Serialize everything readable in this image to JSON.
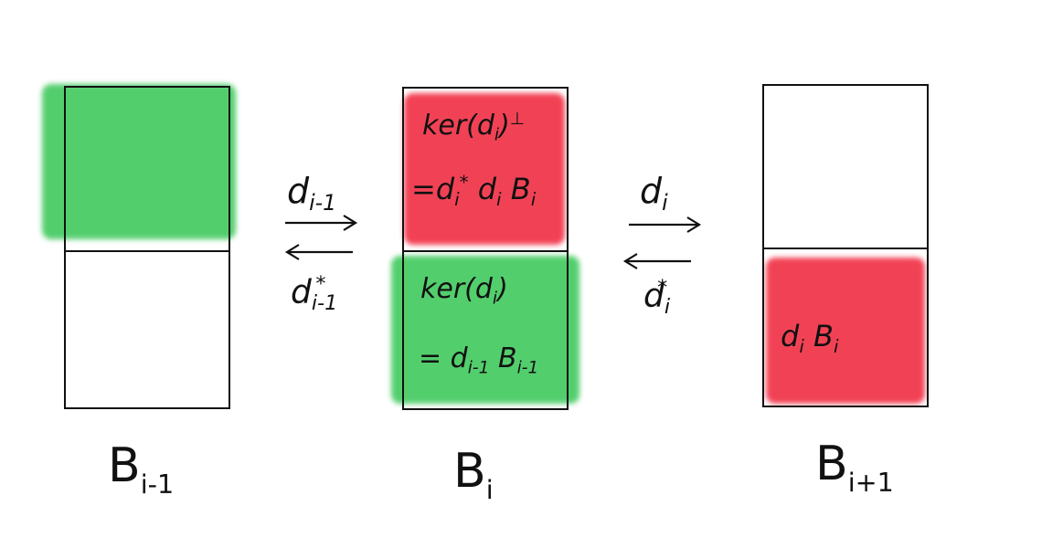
{
  "colors": {
    "green": "#3cc85a",
    "red": "#f0283e",
    "ink": "#111111"
  },
  "spaces": [
    {
      "name": "B",
      "index": "i-1"
    },
    {
      "name": "B",
      "index": "i"
    },
    {
      "name": "B",
      "index": "i+1"
    }
  ],
  "left_maps": {
    "forward": {
      "op": "d",
      "sub": "i-1",
      "sup": ""
    },
    "adjoint": {
      "op": "d",
      "sub": "i-1",
      "sup": "*"
    }
  },
  "right_maps": {
    "forward": {
      "op": "d",
      "sub": "i",
      "sup": ""
    },
    "adjoint": {
      "op": "d",
      "sub": "i",
      "sup": "*"
    }
  },
  "middle_top": {
    "line1": {
      "text": "ker(d",
      "sub": "i",
      "close": ")",
      "sup": "⊥"
    },
    "line2": {
      "text": "=d",
      "sub1": "i",
      "sup1": "*",
      "text2": "d",
      "sub2": "i",
      "text3": "B",
      "sub3": "i"
    }
  },
  "middle_bottom": {
    "line1": {
      "text": "ker(d",
      "sub": "i",
      "close": ")"
    },
    "line2": {
      "text": "= d",
      "sub1": "i-1",
      "text2": "B",
      "sub2": "i-1"
    }
  },
  "right_bottom": {
    "text": "d",
    "sub1": "i",
    "text2": "B",
    "sub2": "i"
  }
}
